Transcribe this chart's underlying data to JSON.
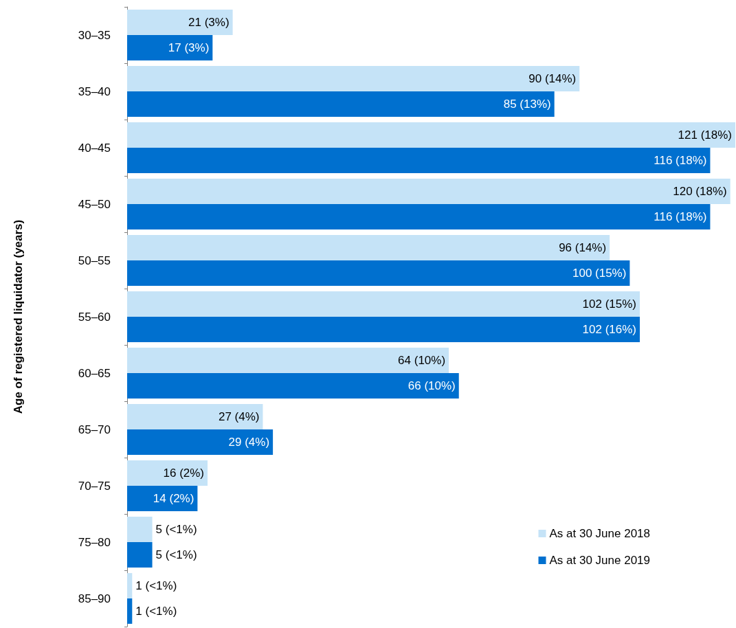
{
  "chart_data": {
    "type": "bar",
    "orientation": "horizontal",
    "ylabel": "Age of registered liquidator (years)",
    "categories": [
      "30–35",
      "35–40",
      "40–45",
      "45–50",
      "50–55",
      "55–60",
      "60–65",
      "65–70",
      "70–75",
      "75–80",
      "85–90"
    ],
    "series": [
      {
        "name": "As at 30 June 2018",
        "color": "#c5e3f7",
        "values": [
          21,
          90,
          121,
          120,
          96,
          102,
          64,
          27,
          16,
          5,
          1
        ],
        "value_labels": [
          "21 (3%)",
          "90 (14%)",
          "121 (18%)",
          "120 (18%)",
          "96 (14%)",
          "102 (15%)",
          "64 (10%)",
          "27 (4%)",
          "16 (2%)",
          "5 (<1%)",
          "1 (<1%)"
        ]
      },
      {
        "name": "As at 30 June 2019",
        "color": "#0070cf",
        "values": [
          17,
          85,
          116,
          116,
          100,
          102,
          66,
          29,
          14,
          5,
          1
        ],
        "value_labels": [
          "17 (3%)",
          "85 (13%)",
          "116 (18%)",
          "116 (18%)",
          "100 (15%)",
          "102 (16%)",
          "66 (10%)",
          "29 (4%)",
          "14 (2%)",
          "5 (<1%)",
          "1 (<1%)"
        ]
      }
    ],
    "legend": "bottom right",
    "grid": false
  }
}
